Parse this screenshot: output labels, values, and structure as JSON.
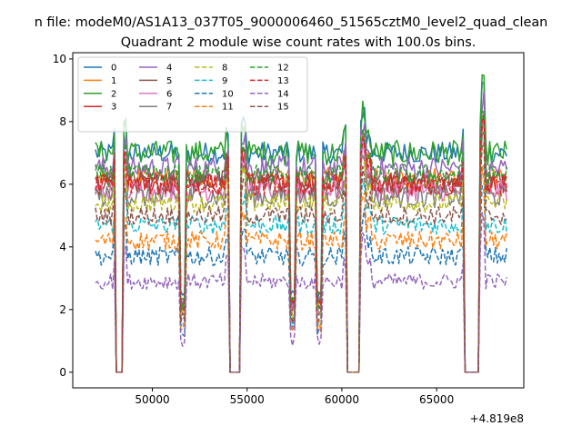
{
  "figure": {
    "suptitle": "n file: modeM0/AS1A13_037T05_9000006460_51565cztM0_level2_quad_clean",
    "offset_text": "+4.819e8"
  },
  "chart_data": {
    "type": "line",
    "title": "Quadrant 2 module wise count rates with 100.0s bins.",
    "xlabel": "",
    "ylabel": "",
    "x_offset": 481900000,
    "xlim": [
      45800,
      69600
    ],
    "ylim": [
      -0.5,
      10.2
    ],
    "xticks": [
      50000,
      55000,
      60000,
      65000
    ],
    "yticks": [
      0,
      2,
      4,
      6,
      8,
      10
    ],
    "bin_seconds": 100,
    "gaps": [
      [
        48100,
        48400
      ],
      [
        54050,
        54650
      ],
      [
        60250,
        60950
      ],
      [
        66500,
        67250
      ]
    ],
    "grid": false,
    "legend": {
      "placement": "upper left",
      "columns": 4
    },
    "series": [
      {
        "name": "0",
        "color": "#1f77b4",
        "dash": "solid",
        "base": 7.0,
        "noise": 0.35
      },
      {
        "name": "1",
        "color": "#ff7f0e",
        "dash": "solid",
        "base": 6.2,
        "noise": 0.35
      },
      {
        "name": "2",
        "color": "#2ca02c",
        "dash": "solid",
        "base": 7.0,
        "noise": 0.4
      },
      {
        "name": "3",
        "color": "#d62728",
        "dash": "solid",
        "base": 6.0,
        "noise": 0.35
      },
      {
        "name": "4",
        "color": "#9467bd",
        "dash": "solid",
        "base": 6.5,
        "noise": 0.4
      },
      {
        "name": "5",
        "color": "#8c564b",
        "dash": "solid",
        "base": 6.1,
        "noise": 0.35
      },
      {
        "name": "6",
        "color": "#e377c2",
        "dash": "solid",
        "base": 5.8,
        "noise": 0.35
      },
      {
        "name": "7",
        "color": "#7f7f7f",
        "dash": "solid",
        "base": 5.6,
        "noise": 0.35
      },
      {
        "name": "8",
        "color": "#bcbd22",
        "dash": "dashed",
        "base": 5.4,
        "noise": 0.3
      },
      {
        "name": "9",
        "color": "#17becf",
        "dash": "dashed",
        "base": 4.7,
        "noise": 0.3
      },
      {
        "name": "10",
        "color": "#1f77b4",
        "dash": "dashed",
        "base": 3.7,
        "noise": 0.3
      },
      {
        "name": "11",
        "color": "#ff7f0e",
        "dash": "dashed",
        "base": 4.2,
        "noise": 0.3
      },
      {
        "name": "12",
        "color": "#2ca02c",
        "dash": "dashed",
        "base": 6.3,
        "noise": 0.35
      },
      {
        "name": "13",
        "color": "#d62728",
        "dash": "dashed",
        "base": 6.0,
        "noise": 0.35
      },
      {
        "name": "14",
        "color": "#9467bd",
        "dash": "dashed",
        "base": 2.9,
        "noise": 0.25
      },
      {
        "name": "15",
        "color": "#8c564b",
        "dash": "dashed",
        "base": 5.0,
        "noise": 0.3
      }
    ]
  }
}
